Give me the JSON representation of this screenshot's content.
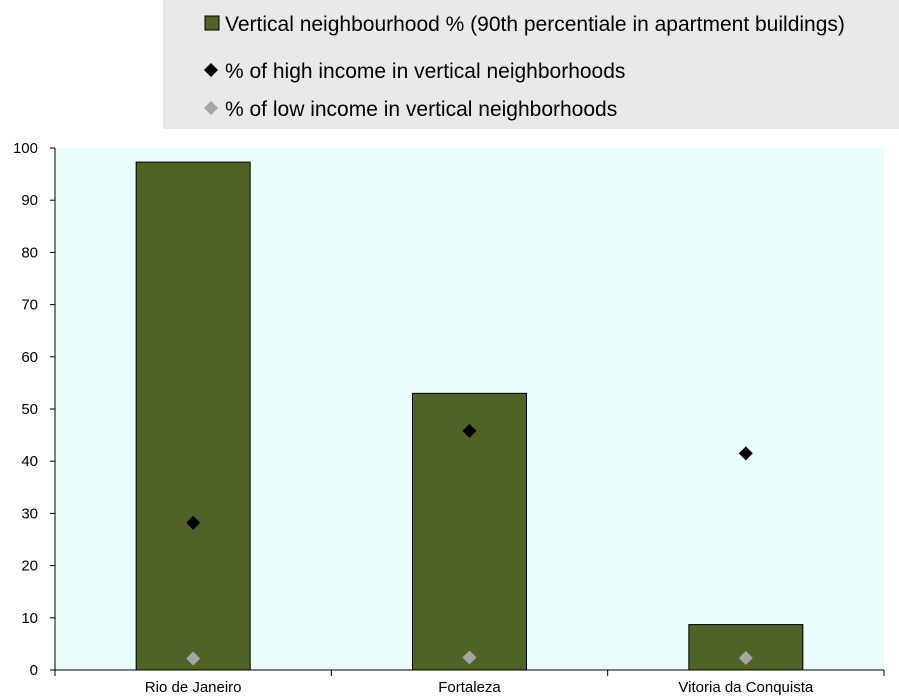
{
  "chart_data": {
    "type": "bar",
    "title": "",
    "xlabel": "",
    "ylabel": "",
    "categories": [
      "Rio de Janeiro",
      "Fortaleza",
      "Vitoria da Conquista"
    ],
    "ylim": [
      0,
      100
    ],
    "y_ticks": [
      0,
      10,
      20,
      30,
      40,
      50,
      60,
      70,
      80,
      90,
      100
    ],
    "grid": false,
    "legend_position": "top",
    "series": [
      {
        "name": "Vertical neighbourhood % (90th percentiale in apartment buildings)",
        "kind": "bar",
        "color": "#4f6228",
        "marker": "square",
        "values": [
          97.3,
          53.0,
          8.7
        ]
      },
      {
        "name": "% of high income in vertical neighborhoods",
        "kind": "scatter",
        "color": "#000000",
        "marker": "diamond",
        "values": [
          28.2,
          45.8,
          41.5
        ]
      },
      {
        "name": "% of low income in vertical neighborhoods",
        "kind": "scatter",
        "color": "#a6a6a6",
        "marker": "diamond",
        "values": [
          2.2,
          2.4,
          2.3
        ]
      }
    ],
    "colors": {
      "plot_background": "#eafcfc",
      "legend_background": "#e9e9e9",
      "bar_fill": "#4f6228",
      "axis": "#000000"
    }
  }
}
